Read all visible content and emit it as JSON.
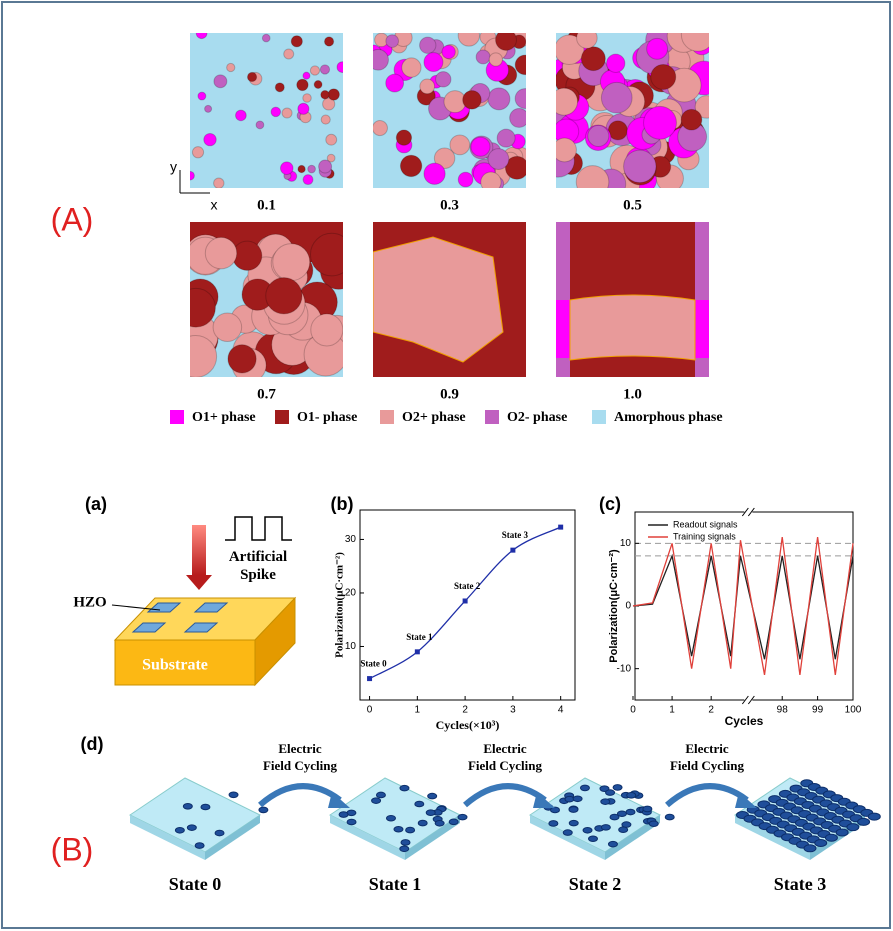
{
  "panel_A": {
    "label": "(A)",
    "images": [
      "0.1",
      "0.3",
      "0.5",
      "0.7",
      "0.9",
      "1.0"
    ],
    "axes": [
      "y",
      "x"
    ],
    "legend": [
      {
        "name": "O1+ phase",
        "color": "#ff00ff"
      },
      {
        "name": "O1- phase",
        "color": "#a01c1c"
      },
      {
        "name": "O2+ phase",
        "color": "#e89a9a"
      },
      {
        "name": "O2- phase",
        "color": "#c060c0"
      },
      {
        "name": "Amorphous phase",
        "color": "#a8dcef"
      }
    ]
  },
  "panel_B": {
    "label": "(B)",
    "sub_a": {
      "label": "(a)",
      "spike": "Artificial Spike",
      "hzo": "HZO",
      "substrate": "Substrate"
    },
    "sub_b_label": "(b)",
    "sub_c_label": "(c)",
    "sub_d": {
      "label": "(d)",
      "states": [
        "State 0",
        "State 1",
        "State 2",
        "State 3"
      ],
      "arrow_text": "Electric Field Cycling"
    }
  },
  "chart_data": [
    {
      "type": "line",
      "xlabel": "Cycles(×10³)",
      "ylabel": "Polarizaiton(μC·cm⁻²)",
      "x": [
        0,
        1,
        2,
        3,
        4
      ],
      "values": [
        4,
        9,
        18.5,
        28,
        32.3
      ],
      "color": "#1f2fa8",
      "annotations": [
        "State 0",
        "State 1",
        "State 2",
        "State 3"
      ],
      "xlim": [
        -0.2,
        4.3
      ],
      "ylim": [
        0,
        35.5
      ],
      "xticks": [
        0,
        1,
        2,
        3,
        4
      ],
      "yticks": [
        10,
        20,
        30
      ]
    },
    {
      "type": "line",
      "xlabel": "Cycles",
      "ylabel": "Polarization(μC·cm⁻²)",
      "x": [
        0,
        0.5,
        1,
        1.5,
        2,
        2.5,
        2.75,
        97.5,
        98,
        98.5,
        99,
        99.5,
        100
      ],
      "series": [
        {
          "name": "Readout signals",
          "color": "#222222",
          "values": [
            0,
            0.3,
            8,
            -8,
            8,
            -8,
            8,
            -8.5,
            8,
            -8.5,
            8,
            -8.5,
            8
          ]
        },
        {
          "name": "Training signals",
          "color": "#e0403a",
          "values": [
            0,
            0.5,
            10,
            -10,
            10,
            -10,
            10.5,
            -11,
            11,
            -11,
            11,
            -11,
            10
          ]
        }
      ],
      "reference_lines": [
        10,
        8
      ],
      "xlim": [
        0,
        100
      ],
      "axis_break": [
        2.9,
        97.1
      ],
      "ylim": [
        -15,
        15
      ],
      "xticks": [
        0,
        1,
        2,
        98,
        99,
        100
      ],
      "yticks": [
        -10,
        0,
        10
      ]
    }
  ]
}
